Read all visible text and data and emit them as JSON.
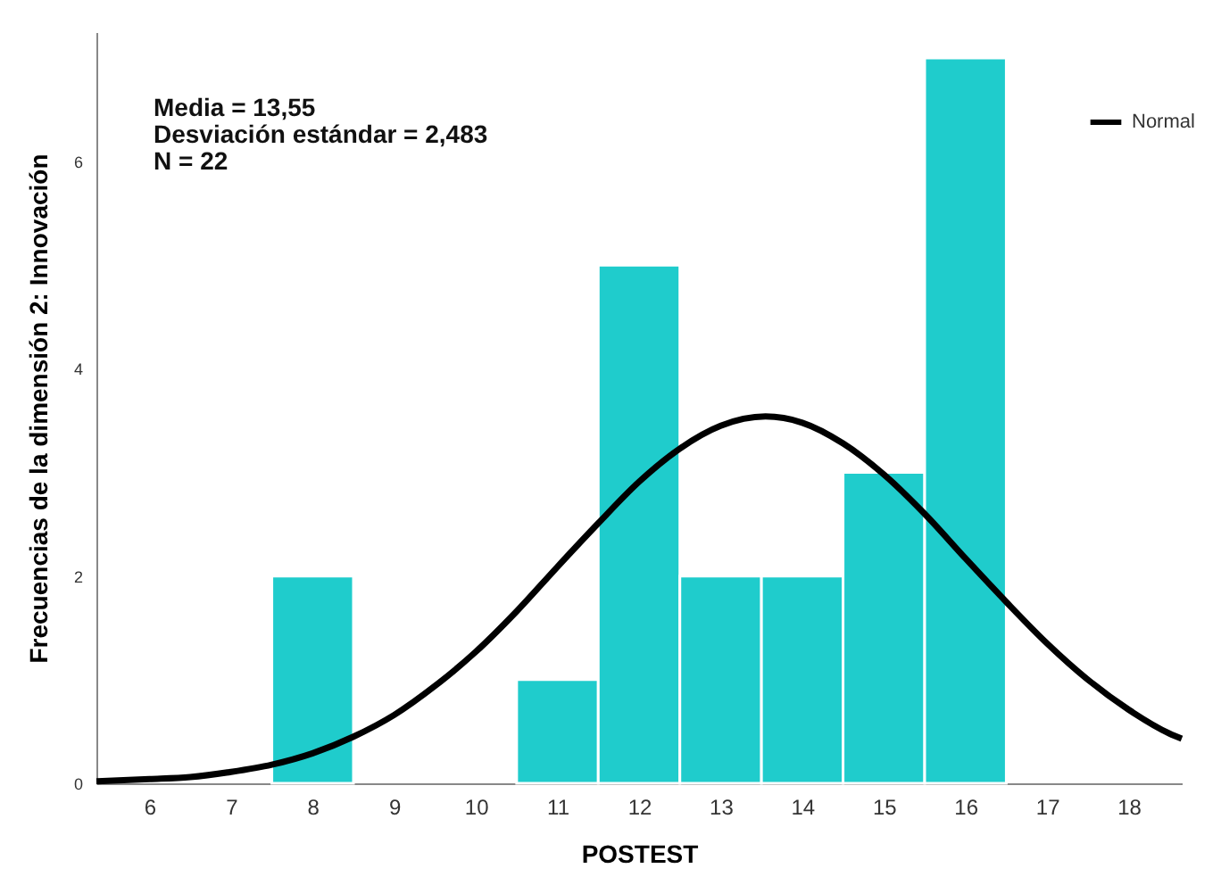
{
  "chart_data": {
    "type": "histogram",
    "xlabel": "POSTEST",
    "ylabel": "Frecuencias de la dimensión 2: Innovación",
    "annotations": [
      "Media = 13,55",
      "Desviación estándar = 2,483",
      "N = 22"
    ],
    "bins": [
      7.5,
      8.5,
      9.5,
      10.5,
      11.5,
      12.5,
      13.5,
      14.5,
      15.5,
      16.5
    ],
    "values": [
      2,
      0,
      0,
      1,
      5,
      2,
      2,
      3,
      7
    ],
    "color": "#1fcccc",
    "series": [
      {
        "name": "Normal",
        "type": "line",
        "color": "#000000",
        "x": [
          5.35,
          6,
          6.5,
          7,
          7.5,
          8,
          8.5,
          9,
          9.5,
          10,
          10.5,
          11,
          11.5,
          12,
          12.5,
          13,
          13.55,
          14,
          14.5,
          15,
          15.5,
          16,
          16.5,
          17,
          17.5,
          18,
          18.5,
          18.65
        ],
        "values": [
          0.02,
          0.04,
          0.06,
          0.11,
          0.18,
          0.29,
          0.45,
          0.66,
          0.94,
          1.27,
          1.66,
          2.09,
          2.51,
          2.91,
          3.23,
          3.45,
          3.54,
          3.48,
          3.28,
          2.98,
          2.6,
          2.17,
          1.75,
          1.35,
          1.0,
          0.71,
          0.48,
          0.43
        ]
      }
    ],
    "xlim": [
      5.35,
      18.65
    ],
    "xticks": [
      6,
      7,
      8,
      9,
      10,
      11,
      12,
      13,
      14,
      15,
      16,
      17,
      18
    ],
    "ylim": [
      0,
      7.25
    ],
    "yticks": [
      0,
      2,
      4,
      6
    ],
    "legend": "top right"
  }
}
